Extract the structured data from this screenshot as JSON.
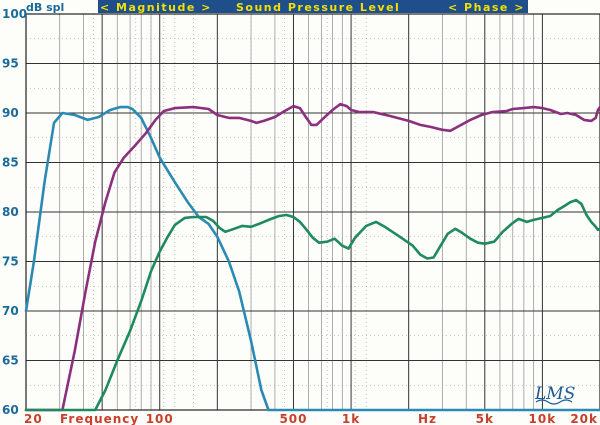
{
  "chart_data": {
    "type": "line",
    "header": {
      "left": "< Magnitude >",
      "center": "Sound Pressure Level",
      "right": "< Phase >"
    },
    "y_unit": "dB spl",
    "x_axis_label_left": "Frequency",
    "x_axis_label_right": "Hz",
    "logo": "LMS",
    "xscale": "log",
    "xlim": [
      20,
      20000
    ],
    "ylim": [
      60,
      100
    ],
    "y_ticks": [
      60,
      65,
      70,
      75,
      80,
      85,
      90,
      95,
      100
    ],
    "x_tick_labels": [
      {
        "x": 20,
        "label": "20"
      },
      {
        "x": 100,
        "label": "100"
      },
      {
        "x": 500,
        "label": "500"
      },
      {
        "x": 1000,
        "label": "1k"
      },
      {
        "x": 5000,
        "label": "5k"
      },
      {
        "x": 10000,
        "label": "10k"
      },
      {
        "x": 20000,
        "label": "20k"
      }
    ],
    "grid": true,
    "colors": {
      "background": "#fdfdfa",
      "header_bg": "#1e4f8a",
      "header_text": "#f2e000",
      "axis_label": "#1a6a9a",
      "freq_label": "#c8402a",
      "major_grid": "#333333",
      "minor_grid": "#9a9a9a"
    },
    "series": [
      {
        "color": "#2a8ab4",
        "points": [
          [
            20,
            70
          ],
          [
            22,
            75
          ],
          [
            25,
            83
          ],
          [
            28,
            89
          ],
          [
            31,
            90
          ],
          [
            36,
            89.8
          ],
          [
            42,
            89.3
          ],
          [
            48,
            89.6
          ],
          [
            55,
            90.3
          ],
          [
            62,
            90.6
          ],
          [
            68,
            90.6
          ],
          [
            72,
            90.4
          ],
          [
            80,
            89.5
          ],
          [
            90,
            87.5
          ],
          [
            100,
            85.5
          ],
          [
            120,
            83
          ],
          [
            140,
            81
          ],
          [
            160,
            79.5
          ],
          [
            180,
            78.8
          ],
          [
            200,
            77.5
          ],
          [
            230,
            75
          ],
          [
            260,
            72
          ],
          [
            300,
            67
          ],
          [
            340,
            62
          ],
          [
            370,
            60
          ],
          [
            20000,
            60
          ]
        ]
      },
      {
        "color": "#8b2f7e",
        "points": [
          [
            20,
            60
          ],
          [
            31,
            60
          ],
          [
            36,
            66
          ],
          [
            41,
            72
          ],
          [
            46,
            77
          ],
          [
            52,
            81
          ],
          [
            58,
            84
          ],
          [
            65,
            85.5
          ],
          [
            75,
            86.8
          ],
          [
            85,
            88
          ],
          [
            95,
            89.3
          ],
          [
            105,
            90.2
          ],
          [
            120,
            90.5
          ],
          [
            150,
            90.6
          ],
          [
            180,
            90.4
          ],
          [
            200,
            89.8
          ],
          [
            230,
            89.5
          ],
          [
            260,
            89.5
          ],
          [
            300,
            89.2
          ],
          [
            320,
            89
          ],
          [
            350,
            89.2
          ],
          [
            400,
            89.6
          ],
          [
            450,
            90.2
          ],
          [
            500,
            90.7
          ],
          [
            540,
            90.5
          ],
          [
            580,
            89.6
          ],
          [
            620,
            88.8
          ],
          [
            660,
            88.8
          ],
          [
            720,
            89.5
          ],
          [
            800,
            90.3
          ],
          [
            880,
            90.9
          ],
          [
            950,
            90.7
          ],
          [
            1000,
            90.3
          ],
          [
            1100,
            90.1
          ],
          [
            1300,
            90.1
          ],
          [
            1600,
            89.7
          ],
          [
            2000,
            89.2
          ],
          [
            2300,
            88.8
          ],
          [
            2600,
            88.6
          ],
          [
            3000,
            88.3
          ],
          [
            3300,
            88.2
          ],
          [
            3600,
            88.6
          ],
          [
            4200,
            89.3
          ],
          [
            4800,
            89.8
          ],
          [
            5500,
            90.1
          ],
          [
            6500,
            90.2
          ],
          [
            7000,
            90.4
          ],
          [
            8000,
            90.5
          ],
          [
            9000,
            90.6
          ],
          [
            10000,
            90.5
          ],
          [
            11000,
            90.3
          ],
          [
            12500,
            89.9
          ],
          [
            13500,
            90
          ],
          [
            15000,
            89.8
          ],
          [
            16500,
            89.3
          ],
          [
            18000,
            89.2
          ],
          [
            19000,
            89.5
          ],
          [
            19500,
            90.3
          ],
          [
            20000,
            90.6
          ]
        ]
      },
      {
        "color": "#1e8a5e",
        "points": [
          [
            20,
            60
          ],
          [
            46,
            60
          ],
          [
            52,
            62
          ],
          [
            60,
            65
          ],
          [
            70,
            68
          ],
          [
            80,
            71
          ],
          [
            90,
            74
          ],
          [
            100,
            76
          ],
          [
            110,
            77.5
          ],
          [
            120,
            78.7
          ],
          [
            135,
            79.4
          ],
          [
            150,
            79.5
          ],
          [
            175,
            79.5
          ],
          [
            190,
            79.1
          ],
          [
            205,
            78.4
          ],
          [
            220,
            78
          ],
          [
            245,
            78.3
          ],
          [
            270,
            78.6
          ],
          [
            300,
            78.5
          ],
          [
            330,
            78.8
          ],
          [
            370,
            79.2
          ],
          [
            420,
            79.6
          ],
          [
            460,
            79.7
          ],
          [
            500,
            79.5
          ],
          [
            540,
            79
          ],
          [
            580,
            78.3
          ],
          [
            630,
            77.4
          ],
          [
            680,
            76.9
          ],
          [
            750,
            77
          ],
          [
            820,
            77.3
          ],
          [
            900,
            76.6
          ],
          [
            970,
            76.3
          ],
          [
            1050,
            77.4
          ],
          [
            1200,
            78.6
          ],
          [
            1350,
            79
          ],
          [
            1500,
            78.5
          ],
          [
            1800,
            77.5
          ],
          [
            2100,
            76.6
          ],
          [
            2300,
            75.7
          ],
          [
            2500,
            75.3
          ],
          [
            2700,
            75.4
          ],
          [
            2900,
            76.4
          ],
          [
            3200,
            77.8
          ],
          [
            3500,
            78.3
          ],
          [
            3800,
            77.9
          ],
          [
            4200,
            77.3
          ],
          [
            4600,
            76.9
          ],
          [
            5000,
            76.8
          ],
          [
            5600,
            77
          ],
          [
            6200,
            78
          ],
          [
            7000,
            78.9
          ],
          [
            7500,
            79.3
          ],
          [
            8300,
            79
          ],
          [
            9000,
            79.2
          ],
          [
            10000,
            79.4
          ],
          [
            11000,
            79.6
          ],
          [
            12000,
            80.2
          ],
          [
            13000,
            80.6
          ],
          [
            14000,
            81
          ],
          [
            15000,
            81.2
          ],
          [
            16000,
            80.8
          ],
          [
            17000,
            79.7
          ],
          [
            18000,
            79
          ],
          [
            19000,
            78.5
          ],
          [
            19500,
            78.2
          ],
          [
            20000,
            78.3
          ]
        ]
      }
    ]
  }
}
